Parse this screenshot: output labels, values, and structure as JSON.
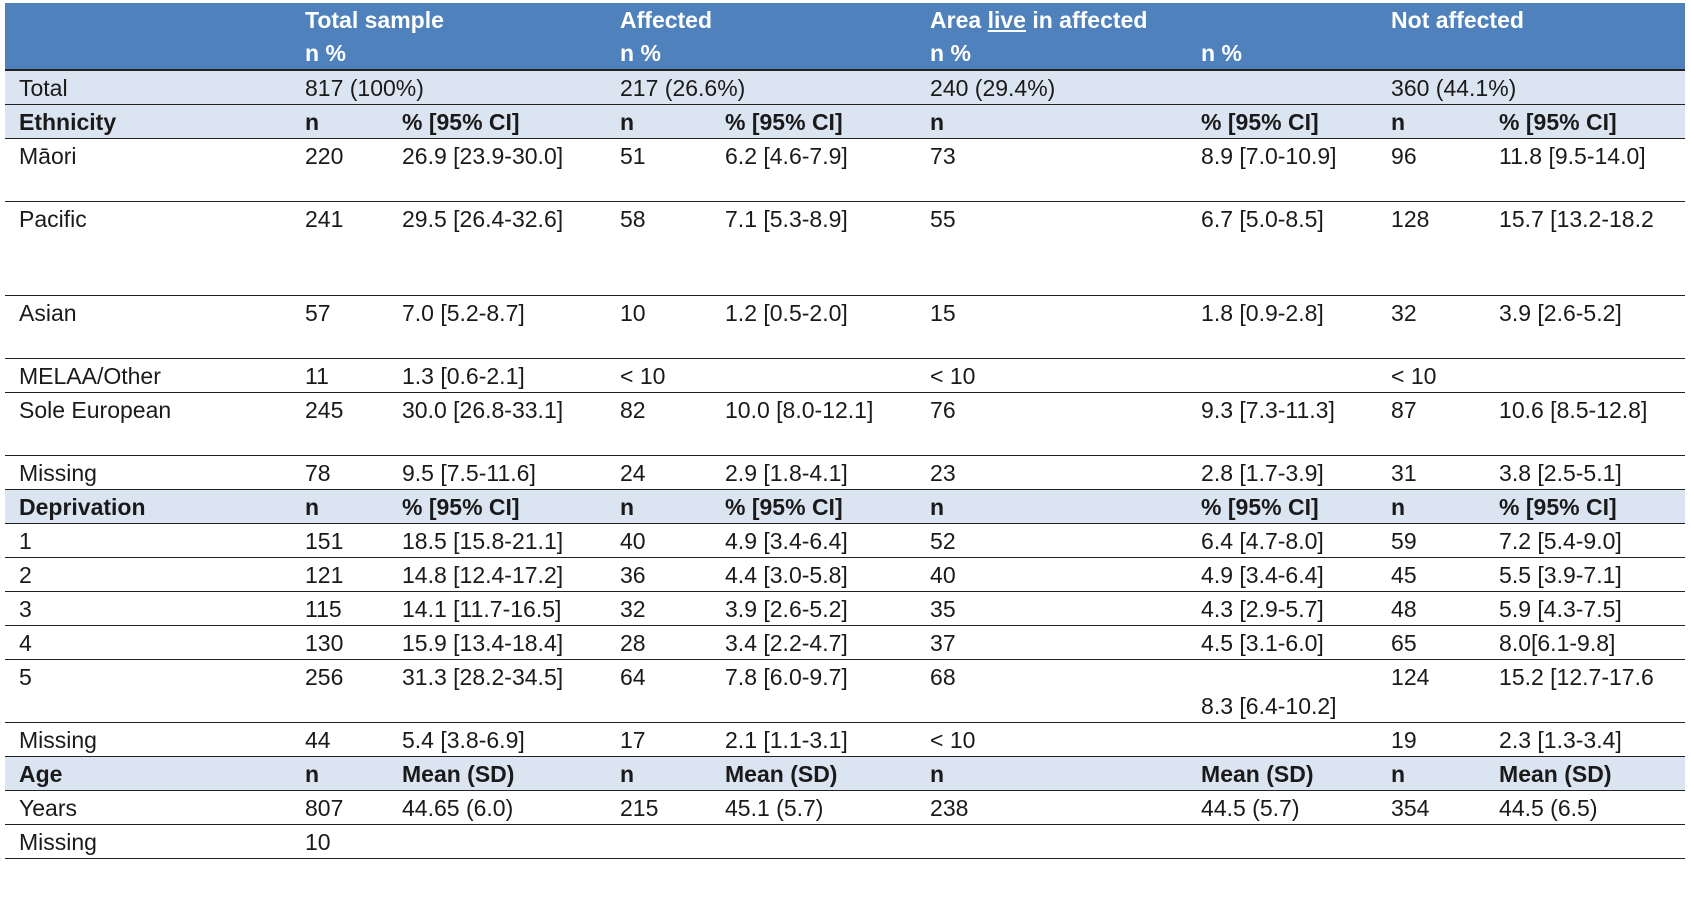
{
  "header": {
    "groups": [
      "Total sample",
      "Affected",
      "Area",
      "live",
      "in affected",
      "Not affected"
    ],
    "sub": [
      "n %",
      "n %",
      "n %",
      "n %"
    ]
  },
  "total": {
    "label": "Total",
    "values": [
      "817 (100%)",
      "217 (26.6%)",
      "240 (29.4%)",
      "360 (44.1%)"
    ]
  },
  "ethnicity": {
    "heading": [
      "Ethnicity",
      "n",
      "% [95% CI]",
      "n",
      "% [95% CI]",
      "n",
      "% [95% CI]",
      "n",
      "% [95% CI]"
    ],
    "rows": [
      [
        "Māori",
        "220",
        "26.9 [23.9-30.0]",
        "51",
        "6.2 [4.6-7.9]",
        "73",
        "8.9 [7.0-10.9]",
        "96",
        "11.8 [9.5-14.0]"
      ],
      [
        "Pacific",
        "241",
        "29.5 [26.4-32.6]",
        "58",
        "7.1 [5.3-8.9]",
        "55",
        "6.7 [5.0-8.5]",
        "128",
        "15.7 [13.2-18.2"
      ],
      [
        "Asian",
        "57",
        "7.0 [5.2-8.7]",
        "10",
        "1.2 [0.5-2.0]",
        "15",
        "1.8 [0.9-2.8]",
        "32",
        "3.9 [2.6-5.2]"
      ],
      [
        "MELAA/Other",
        "11",
        "1.3 [0.6-2.1]",
        "< 10",
        "",
        "< 10",
        "",
        "< 10",
        ""
      ],
      [
        "Sole European",
        "245",
        "30.0 [26.8-33.1]",
        "82",
        "10.0 [8.0-12.1]",
        "76",
        "9.3 [7.3-11.3]",
        "87",
        "10.6 [8.5-12.8]"
      ],
      [
        "Missing",
        "78",
        "9.5 [7.5-11.6]",
        "24",
        "2.9 [1.8-4.1]",
        "23",
        "2.8 [1.7-3.9]",
        "31",
        "3.8 [2.5-5.1]"
      ]
    ]
  },
  "deprivation": {
    "heading": [
      "Deprivation",
      "n",
      "% [95% CI]",
      "n",
      "% [95% CI]",
      "n",
      "% [95% CI]",
      "n",
      "% [95% CI]"
    ],
    "rows": [
      [
        "1",
        "151",
        "18.5 [15.8-21.1]",
        "40",
        "4.9 [3.4-6.4]",
        "52",
        "6.4 [4.7-8.0]",
        "59",
        "7.2 [5.4-9.0]"
      ],
      [
        "2",
        "121",
        "14.8 [12.4-17.2]",
        "36",
        "4.4 [3.0-5.8]",
        "40",
        "4.9 [3.4-6.4]",
        "45",
        "5.5 [3.9-7.1]"
      ],
      [
        "3",
        "115",
        "14.1 [11.7-16.5]",
        "32",
        "3.9 [2.6-5.2]",
        "35",
        "4.3 [2.9-5.7]",
        "48",
        "5.9 [4.3-7.5]"
      ],
      [
        "4",
        "130",
        "15.9 [13.4-18.4]",
        "28",
        "3.4 [2.2-4.7]",
        "37",
        "4.5 [3.1-6.0]",
        "65",
        "8.0[6.1-9.8]"
      ],
      [
        "5",
        "256",
        "31.3 [28.2-34.5]",
        "64",
        "7.8 [6.0-9.7]",
        "68",
        "8.3 [6.4-10.2]",
        "124",
        "15.2 [12.7-17.6"
      ],
      [
        "Missing",
        "44",
        "5.4 [3.8-6.9]",
        "17",
        "2.1 [1.1-3.1]",
        "< 10",
        "",
        "19",
        "2.3 [1.3-3.4]"
      ]
    ]
  },
  "age": {
    "heading": [
      "Age",
      "n",
      "Mean (SD)",
      "n",
      "Mean (SD)",
      "n",
      "Mean (SD)",
      "n",
      "Mean (SD)"
    ],
    "rows": [
      [
        "Years",
        "807",
        "44.65 (6.0)",
        "215",
        "45.1 (5.7)",
        "238",
        "44.5 (5.7)",
        "354",
        "44.5 (6.5)"
      ],
      [
        "Missing",
        "10",
        "",
        "",
        "",
        "",
        "",
        "",
        ""
      ]
    ]
  },
  "colors": {
    "header_blue": "#4f81bd",
    "section_blue": "#dbe5f1"
  }
}
